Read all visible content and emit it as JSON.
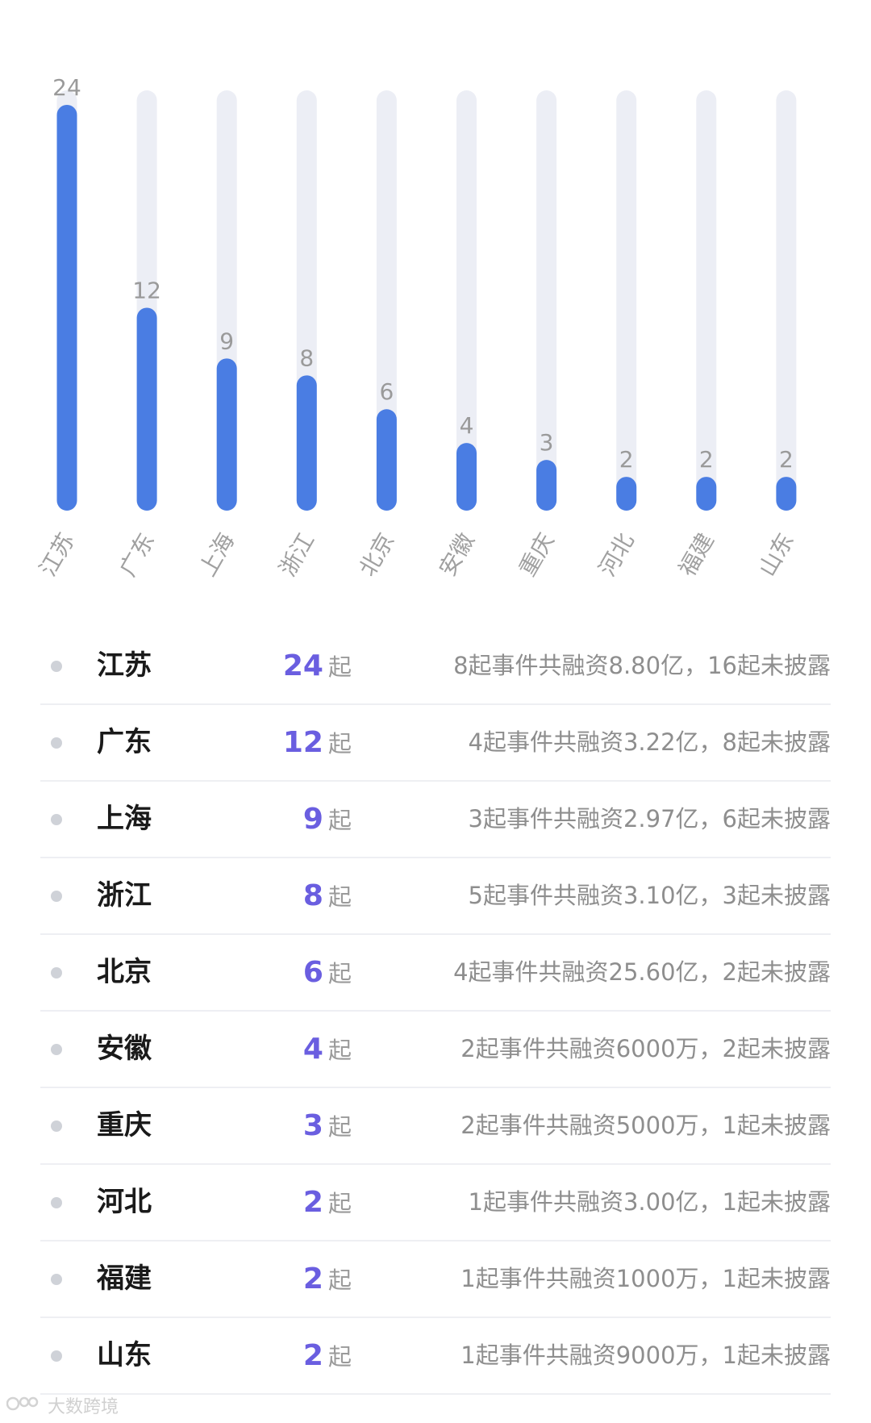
{
  "chart_data": {
    "type": "bar",
    "categories": [
      "江苏",
      "广东",
      "上海",
      "浙江",
      "北京",
      "安徽",
      "重庆",
      "河北",
      "福建",
      "山东"
    ],
    "values": [
      24,
      12,
      9,
      8,
      6,
      4,
      3,
      2,
      2,
      2
    ],
    "ylim": [
      0,
      25
    ],
    "grid": false,
    "legend": "none",
    "title": "",
    "xlabel": "",
    "ylabel": ""
  },
  "list": [
    {
      "region": "江苏",
      "count": "24",
      "unit": "起",
      "detail": "8起事件共融资8.80亿，16起未披露"
    },
    {
      "region": "广东",
      "count": "12",
      "unit": "起",
      "detail": "4起事件共融资3.22亿，8起未披露"
    },
    {
      "region": "上海",
      "count": "9",
      "unit": "起",
      "detail": "3起事件共融资2.97亿，6起未披露"
    },
    {
      "region": "浙江",
      "count": "8",
      "unit": "起",
      "detail": "5起事件共融资3.10亿，3起未披露"
    },
    {
      "region": "北京",
      "count": "6",
      "unit": "起",
      "detail": "4起事件共融资25.60亿，2起未披露"
    },
    {
      "region": "安徽",
      "count": "4",
      "unit": "起",
      "detail": "2起事件共融资6000万，2起未披露"
    },
    {
      "region": "重庆",
      "count": "3",
      "unit": "起",
      "detail": "2起事件共融资5000万，1起未披露"
    },
    {
      "region": "河北",
      "count": "2",
      "unit": "起",
      "detail": "1起事件共融资3.00亿，1起未披露"
    },
    {
      "region": "福建",
      "count": "2",
      "unit": "起",
      "detail": "1起事件共融资1000万，1起未披露"
    },
    {
      "region": "山东",
      "count": "2",
      "unit": "起",
      "detail": "1起事件共融资9000万，1起未披露"
    }
  ],
  "watermark": {
    "text": "大数跨境"
  },
  "colors": {
    "bar": "#4a7de3",
    "track": "#eceef5",
    "value_label": "#9a9a9a",
    "count": "#6a5ee0"
  }
}
